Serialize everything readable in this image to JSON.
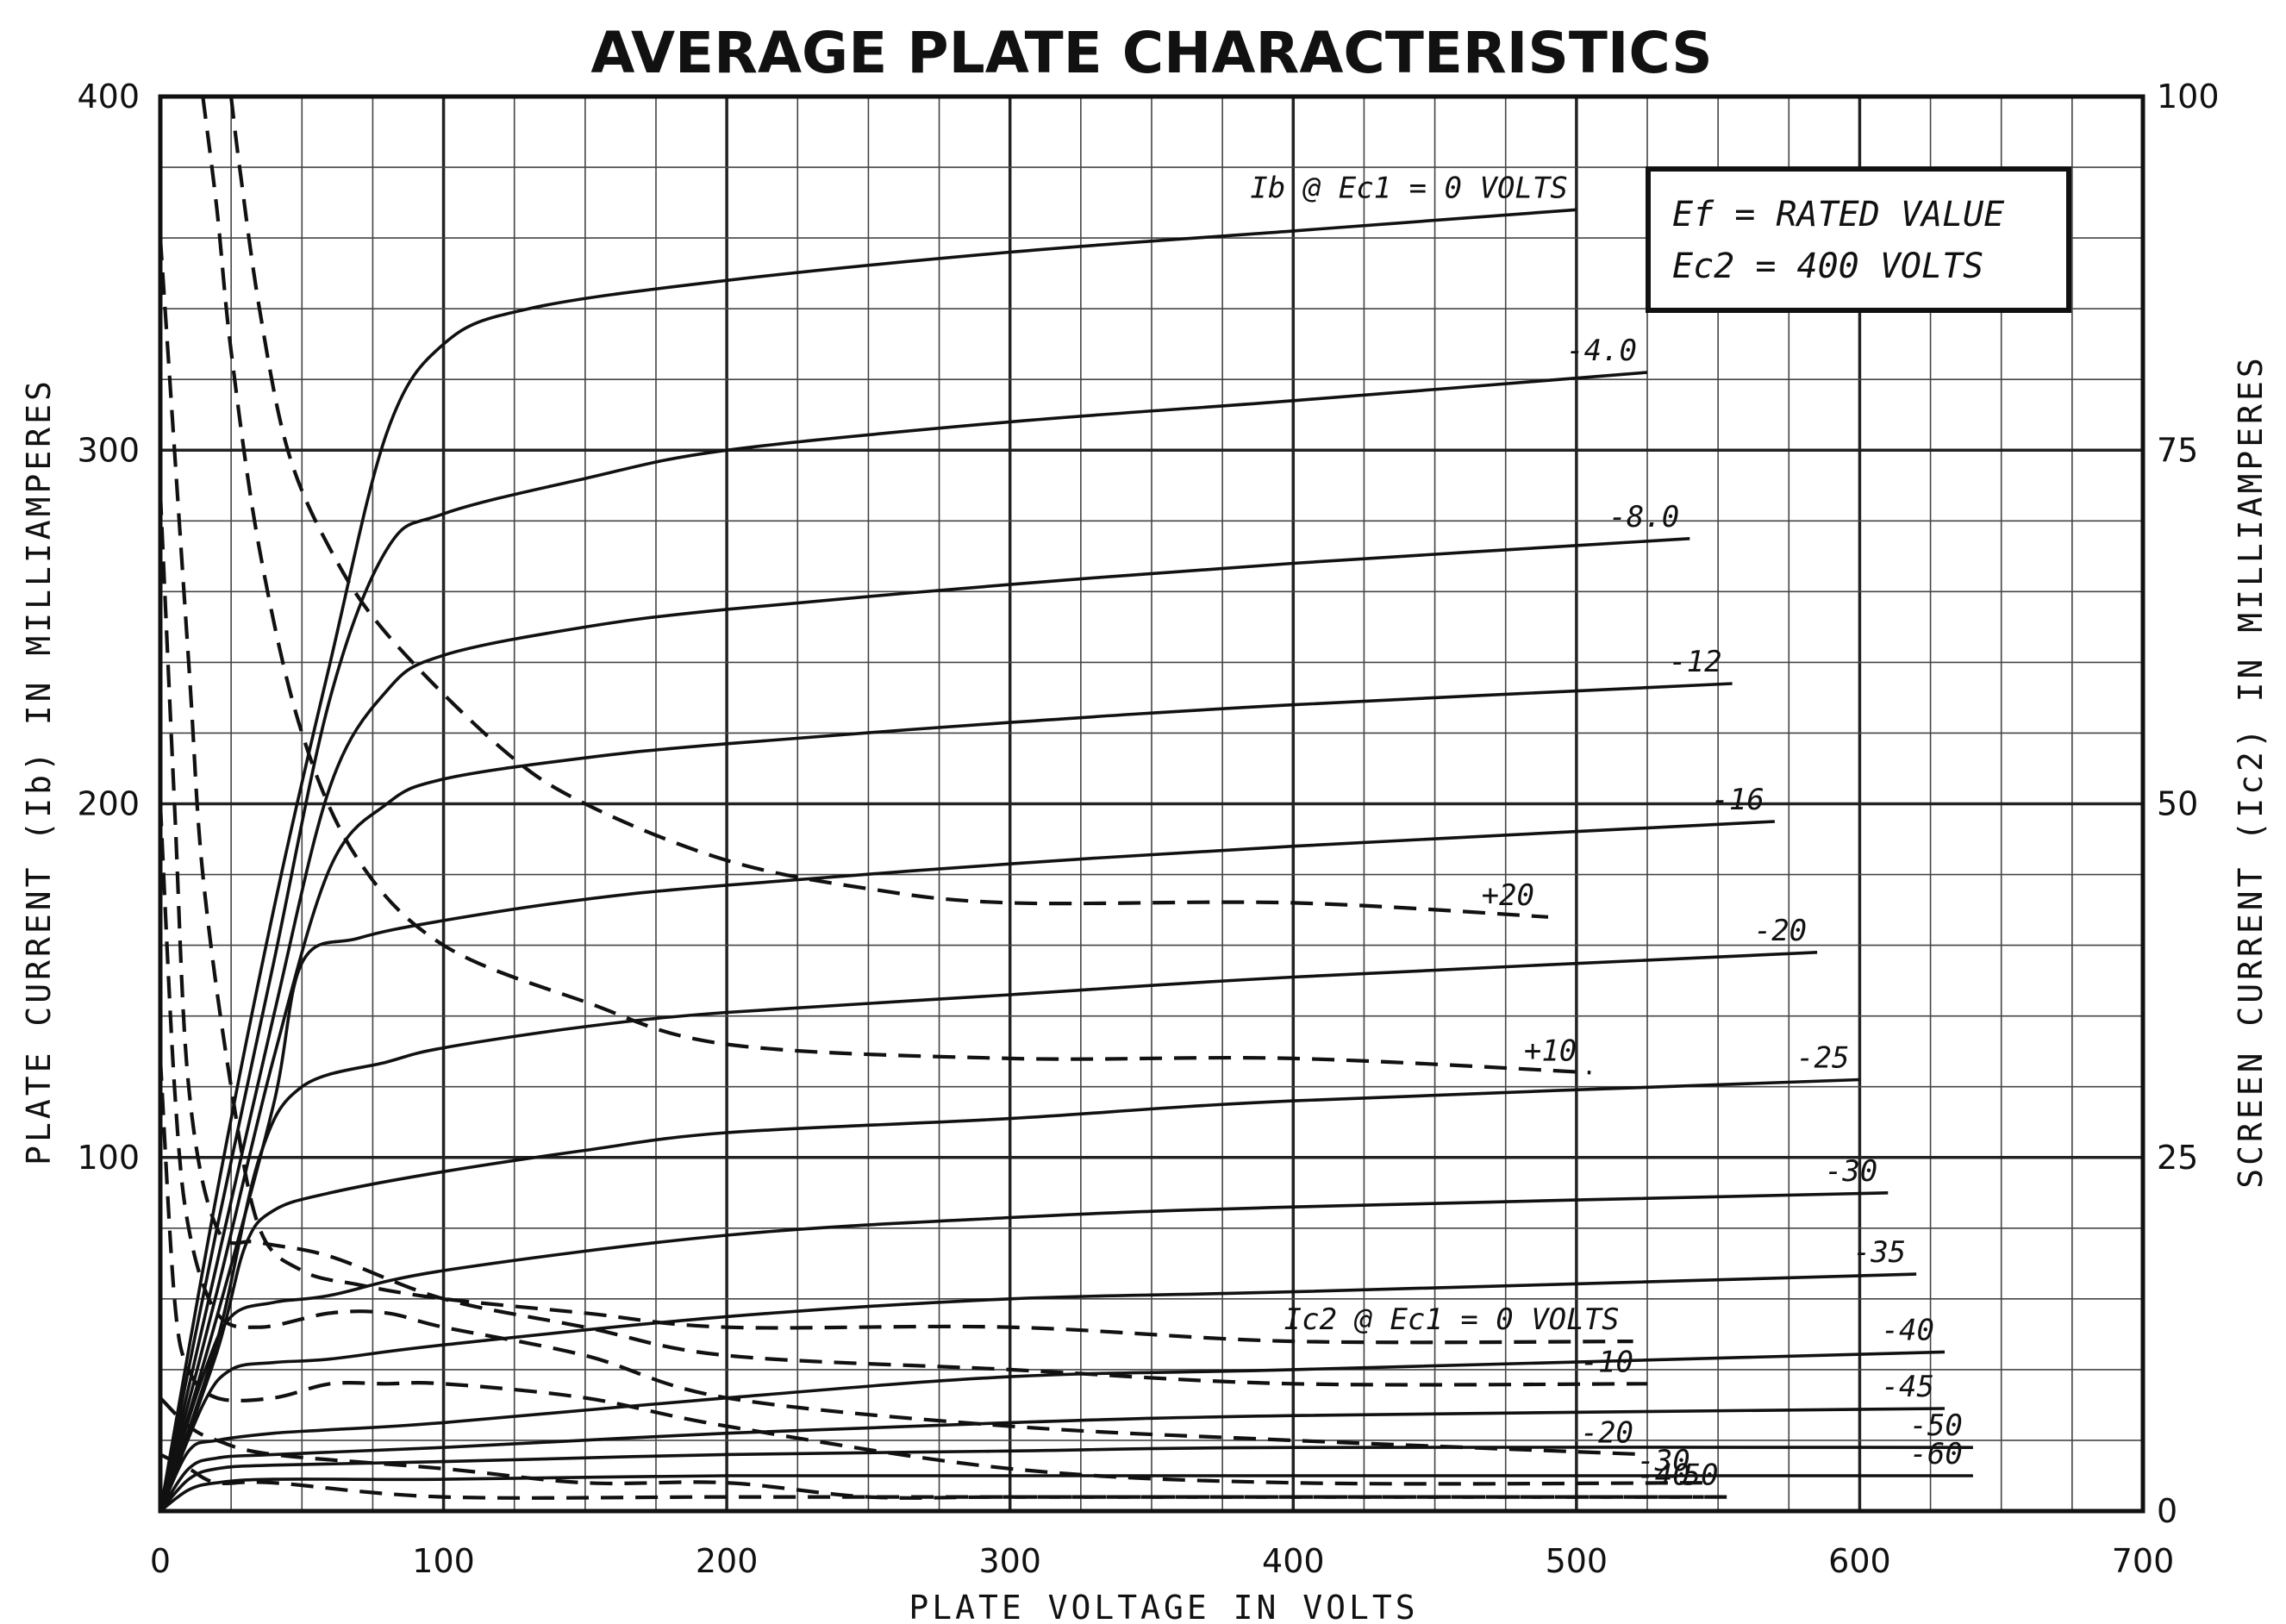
{
  "chart_data": {
    "type": "line",
    "title": "AVERAGE PLATE CHARACTERISTICS",
    "xlabel": "PLATE VOLTAGE IN VOLTS",
    "ylabel_left": "PLATE CURRENT (Ib) IN MILLIAMPERES",
    "ylabel_right": "SCREEN CURRENT (Ic2) IN MILLIAMPERES",
    "xlim": [
      0,
      700
    ],
    "ylim_left": [
      0,
      400
    ],
    "ylim_right": [
      0,
      100
    ],
    "x_ticks": [
      "0",
      "100",
      "200",
      "300",
      "400",
      "500",
      "600",
      "700"
    ],
    "y_left_ticks": [
      "400",
      "300",
      "200",
      "100"
    ],
    "y_right_ticks": [
      "100",
      "75",
      "50",
      "25",
      "0"
    ],
    "grid": true,
    "conditions_box": {
      "line1": "Ef = RATED VALUE",
      "line2": "Ec2 = 400 VOLTS"
    },
    "plate_current_curves": [
      {
        "label": "Ib @ Ec1 = 0 VOLTS",
        "x": [
          0,
          20,
          40,
          60,
          80,
          100,
          130,
          200,
          300,
          400,
          500
        ],
        "y": [
          0,
          90,
          170,
          240,
          305,
          330,
          340,
          348,
          356,
          362,
          368
        ]
      },
      {
        "label": "-4.0",
        "x": [
          0,
          20,
          40,
          60,
          80,
          100,
          150,
          200,
          300,
          400,
          525
        ],
        "y": [
          0,
          80,
          155,
          230,
          272,
          282,
          292,
          300,
          308,
          314,
          322
        ]
      },
      {
        "label": "-8.0",
        "x": [
          0,
          20,
          40,
          60,
          80,
          100,
          150,
          200,
          300,
          400,
          540
        ],
        "y": [
          0,
          70,
          140,
          205,
          232,
          242,
          250,
          255,
          262,
          268,
          275
        ]
      },
      {
        "label": "-12",
        "x": [
          0,
          20,
          40,
          60,
          80,
          100,
          150,
          200,
          300,
          400,
          555
        ],
        "y": [
          0,
          62,
          128,
          182,
          200,
          207,
          213,
          217,
          223,
          228,
          234
        ]
      },
      {
        "label": "-16",
        "x": [
          0,
          20,
          40,
          50,
          70,
          100,
          150,
          200,
          300,
          400,
          570
        ],
        "y": [
          0,
          55,
          115,
          155,
          162,
          167,
          173,
          177,
          183,
          188,
          195
        ]
      },
      {
        "label": "-20",
        "x": [
          0,
          20,
          35,
          50,
          80,
          100,
          150,
          200,
          300,
          400,
          585
        ],
        "y": [
          0,
          48,
          100,
          120,
          127,
          131,
          137,
          141,
          146,
          151,
          158
        ]
      },
      {
        "label": "-25",
        "x": [
          0,
          20,
          30,
          40,
          60,
          100,
          150,
          200,
          300,
          400,
          600
        ],
        "y": [
          0,
          45,
          75,
          85,
          90,
          96,
          102,
          107,
          111,
          116,
          122
        ]
      },
      {
        "label": "-30",
        "x": [
          0,
          15,
          25,
          40,
          60,
          100,
          200,
          300,
          400,
          610
        ],
        "y": [
          0,
          38,
          55,
          59,
          61,
          68,
          78,
          83,
          86,
          90
        ]
      },
      {
        "label": "-35",
        "x": [
          0,
          15,
          25,
          40,
          60,
          100,
          200,
          300,
          400,
          620
        ],
        "y": [
          0,
          30,
          40,
          42,
          43,
          47,
          55,
          60,
          62,
          67
        ]
      },
      {
        "label": "-40",
        "x": [
          0,
          10,
          20,
          40,
          60,
          100,
          200,
          300,
          400,
          630
        ],
        "y": [
          0,
          17,
          20,
          22,
          23,
          25,
          32,
          38,
          40,
          45
        ]
      },
      {
        "label": "-45",
        "x": [
          0,
          10,
          20,
          40,
          100,
          200,
          300,
          400,
          630
        ],
        "y": [
          0,
          12,
          15,
          16,
          18,
          22,
          25,
          27,
          29
        ]
      },
      {
        "label": "-50",
        "x": [
          0,
          10,
          20,
          40,
          100,
          200,
          300,
          400,
          640
        ],
        "y": [
          0,
          9,
          12,
          13,
          14,
          16,
          17,
          18,
          18
        ]
      },
      {
        "label": "-60",
        "x": [
          0,
          10,
          20,
          40,
          100,
          200,
          300,
          400,
          640
        ],
        "y": [
          0,
          6,
          8,
          9,
          9,
          10,
          10,
          10,
          10
        ]
      }
    ],
    "screen_current_curves": [
      {
        "label": "+20",
        "x": [
          25,
          28,
          35,
          45,
          60,
          80,
          120,
          150,
          200,
          250,
          300,
          400,
          490
        ],
        "y": [
          100,
          95,
          85,
          75,
          68,
          62,
          54,
          50,
          46,
          44,
          43,
          43,
          42
        ]
      },
      {
        "label": "+10",
        "x": [
          15,
          20,
          25,
          35,
          50,
          70,
          100,
          150,
          200,
          300,
          400,
          505
        ],
        "y": [
          100,
          92,
          82,
          68,
          55,
          46,
          40,
          36,
          33,
          32,
          32,
          31
        ]
      },
      {
        "label": "Ic2 @ Ec1 = 0 VOLTS",
        "x": [
          0,
          10,
          15,
          25,
          35,
          50,
          70,
          100,
          150,
          200,
          300,
          400,
          520
        ],
        "y": [
          90,
          60,
          45,
          30,
          20,
          17,
          16,
          15,
          14,
          13,
          13,
          12,
          12
        ]
      },
      {
        "label": "-10",
        "x": [
          0,
          5,
          10,
          20,
          35,
          60,
          100,
          150,
          200,
          300,
          400,
          525
        ],
        "y": [
          72,
          50,
          30,
          20,
          19,
          18,
          15,
          13,
          11,
          10,
          9,
          9
        ]
      },
      {
        "label": "-20",
        "x": [
          0,
          5,
          10,
          20,
          35,
          60,
          80,
          100,
          150,
          200,
          300,
          400,
          525
        ],
        "y": [
          50,
          30,
          20,
          14,
          13,
          14,
          14,
          13,
          11,
          8,
          6,
          5,
          4
        ]
      },
      {
        "label": "-30",
        "x": [
          0,
          5,
          10,
          20,
          40,
          60,
          80,
          100,
          150,
          200,
          300,
          400,
          545
        ],
        "y": [
          32,
          15,
          10,
          8,
          8,
          9,
          9,
          9,
          8,
          6,
          3,
          2,
          2
        ]
      },
      {
        "label": "-40",
        "x": [
          0,
          10,
          20,
          40,
          100,
          150,
          200,
          250,
          300,
          400,
          545
        ],
        "y": [
          8,
          6,
          5,
          4,
          3,
          2,
          2,
          1,
          1,
          1,
          1
        ]
      },
      {
        "label": "-50",
        "x": [
          0,
          10,
          20,
          40,
          100,
          200,
          300,
          400,
          555
        ],
        "y": [
          4,
          3,
          2,
          2,
          1,
          1,
          1,
          1,
          1
        ]
      }
    ]
  }
}
